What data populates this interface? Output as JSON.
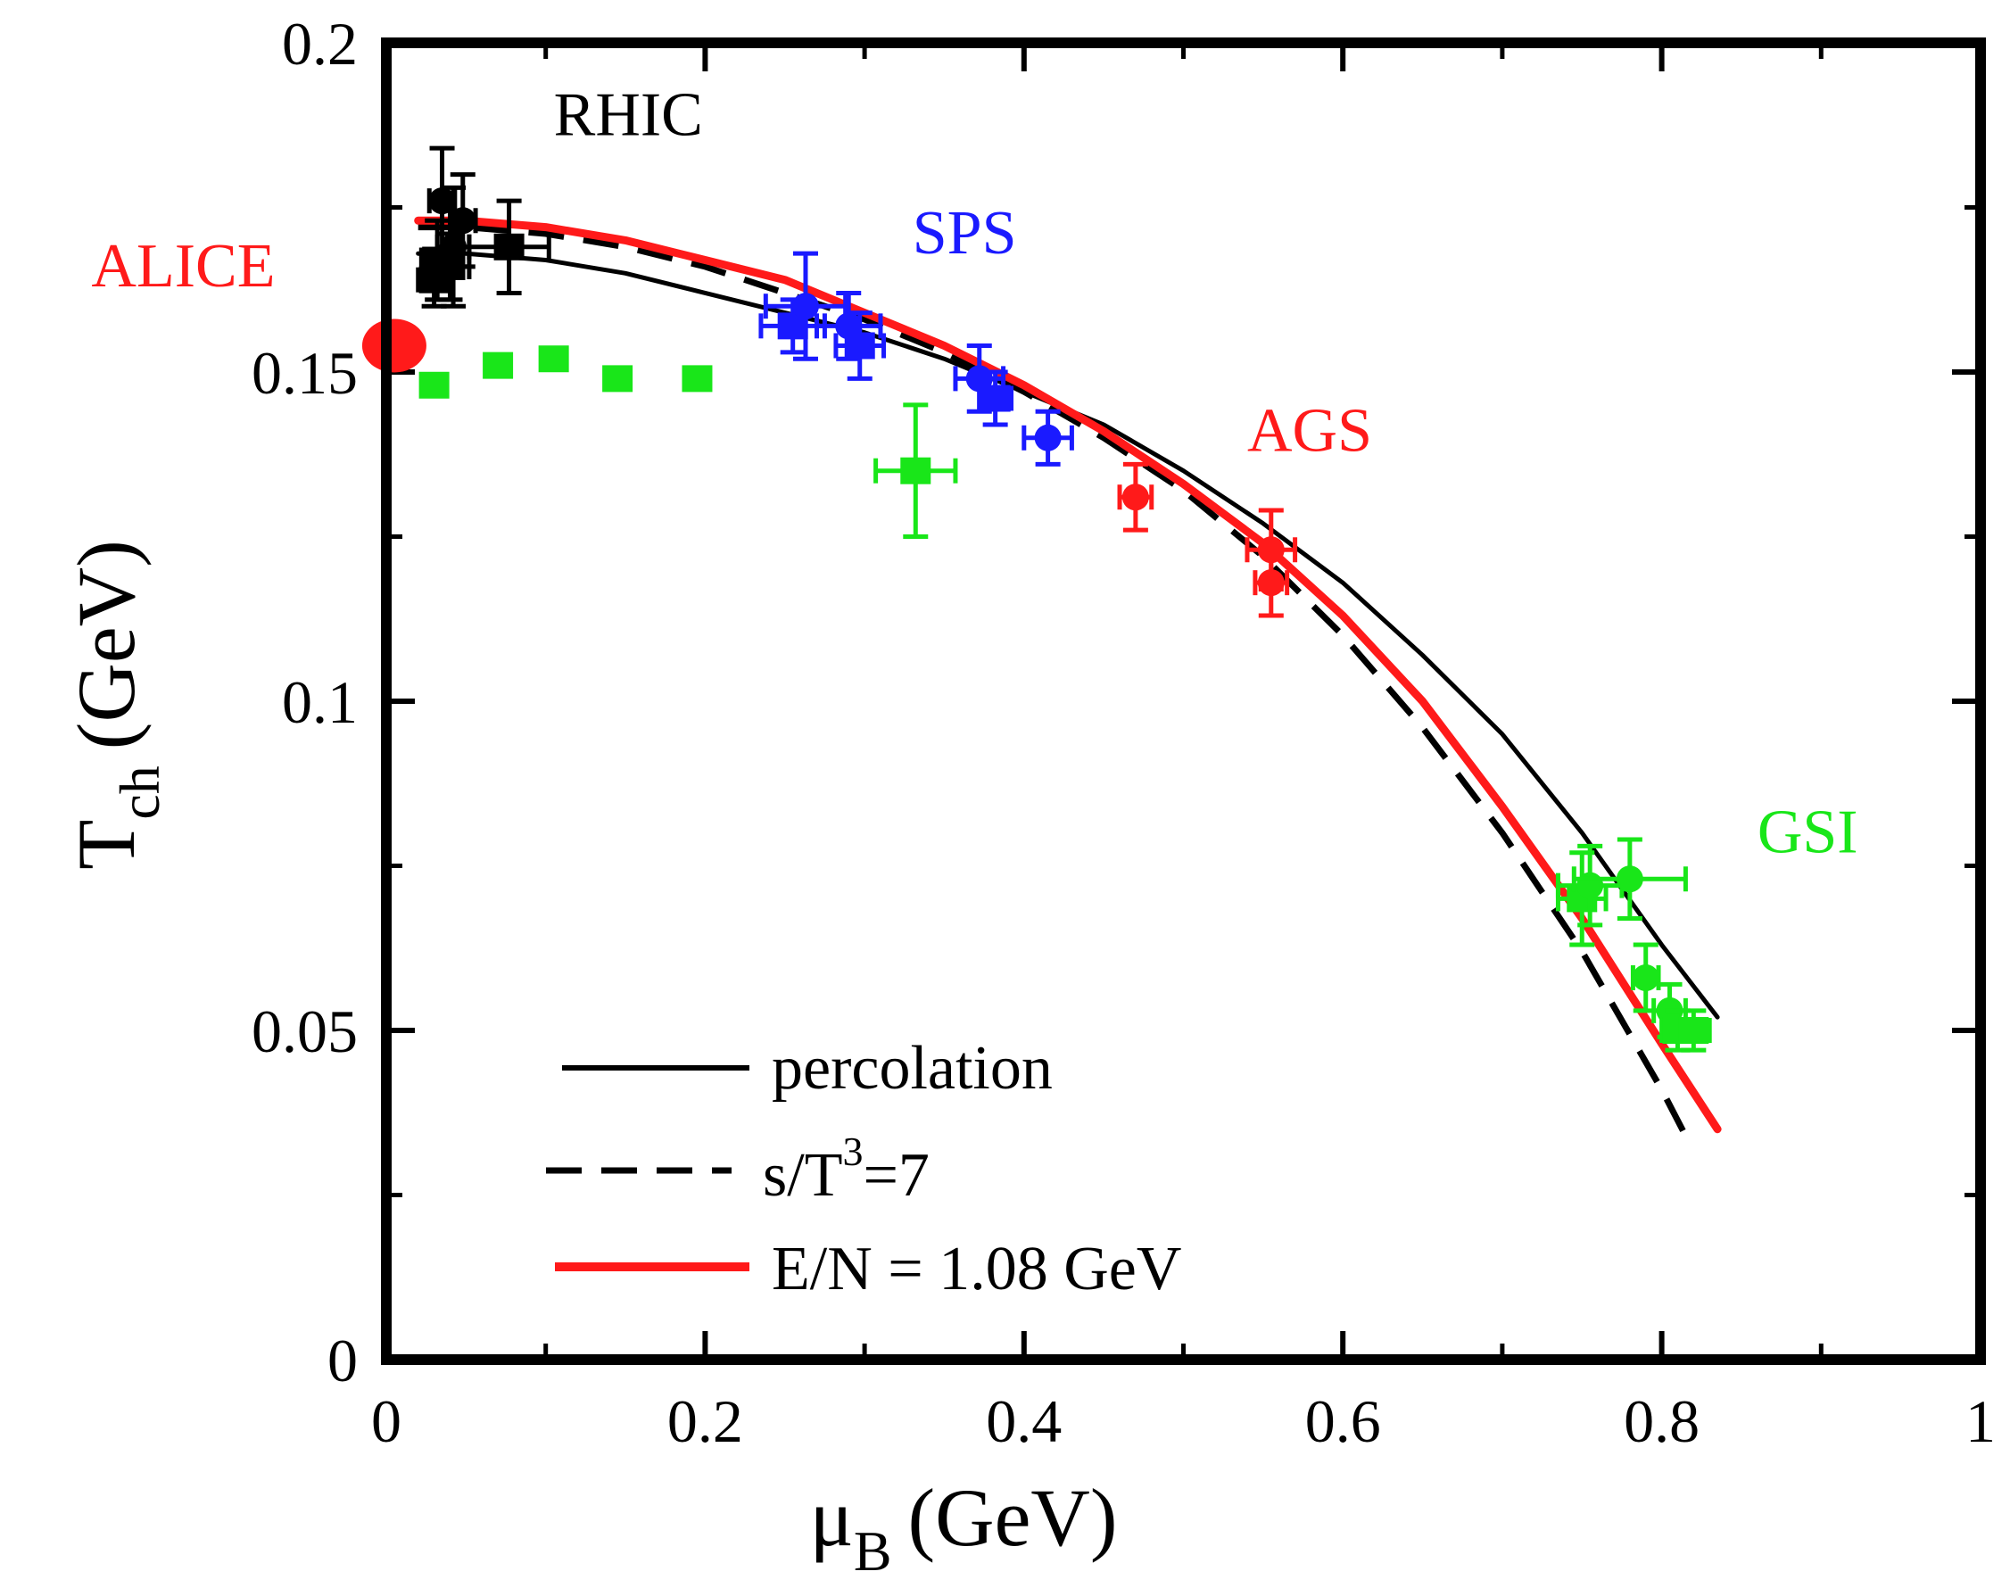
{
  "colors": {
    "black": "#000000",
    "red": "#ff1a1a",
    "blue": "#1a1aff",
    "green": "#19e619"
  },
  "chart_data": {
    "type": "scatter",
    "title": "",
    "xlabel": {
      "symbol": "μ",
      "sub": "B",
      "unit": "(GeV)"
    },
    "ylabel": {
      "symbol": "T",
      "sub": "ch",
      "unit": "(GeV)"
    },
    "xlim": [
      0,
      1
    ],
    "ylim": [
      0,
      0.2
    ],
    "xticks": [
      {
        "value": 0,
        "label": "0"
      },
      {
        "value": 0.2,
        "label": "0.2"
      },
      {
        "value": 0.4,
        "label": "0.4"
      },
      {
        "value": 0.6,
        "label": "0.6"
      },
      {
        "value": 0.8,
        "label": "0.8"
      },
      {
        "value": 1,
        "label": "1"
      }
    ],
    "yticks": [
      {
        "value": 0,
        "label": "0"
      },
      {
        "value": 0.05,
        "label": "0.05"
      },
      {
        "value": 0.1,
        "label": "0.1"
      },
      {
        "value": 0.15,
        "label": "0.15"
      },
      {
        "value": 0.2,
        "label": "0.2"
      }
    ],
    "x_minor_ticks": [
      0.1,
      0.3,
      0.5,
      0.7,
      0.9
    ],
    "y_minor_ticks": [
      0.025,
      0.075,
      0.125,
      0.175
    ],
    "curves": [
      {
        "name": "percolation",
        "color": "#000000",
        "style": "solid",
        "x": [
          0.02,
          0.05,
          0.1,
          0.15,
          0.2,
          0.25,
          0.3,
          0.35,
          0.4,
          0.45,
          0.5,
          0.55,
          0.6,
          0.65,
          0.7,
          0.75,
          0.8,
          0.835
        ],
        "y": [
          0.168,
          0.168,
          0.167,
          0.165,
          0.162,
          0.159,
          0.156,
          0.152,
          0.147,
          0.142,
          0.135,
          0.127,
          0.118,
          0.107,
          0.095,
          0.08,
          0.063,
          0.052
        ]
      },
      {
        "name": "s/T³=7",
        "color": "#000000",
        "style": "dashed",
        "x": [
          0.02,
          0.05,
          0.1,
          0.15,
          0.2,
          0.25,
          0.3,
          0.35,
          0.4,
          0.45,
          0.5,
          0.55,
          0.6,
          0.65,
          0.7,
          0.75,
          0.8,
          0.815
        ],
        "y": [
          0.172,
          0.172,
          0.171,
          0.169,
          0.166,
          0.162,
          0.158,
          0.153,
          0.147,
          0.14,
          0.132,
          0.122,
          0.11,
          0.096,
          0.08,
          0.062,
          0.041,
          0.034
        ]
      },
      {
        "name": "E/N = 1.08 GeV",
        "color": "#ff1a1a",
        "style": "solid",
        "x": [
          0.02,
          0.05,
          0.1,
          0.15,
          0.2,
          0.25,
          0.3,
          0.35,
          0.4,
          0.45,
          0.5,
          0.55,
          0.6,
          0.65,
          0.7,
          0.75,
          0.8,
          0.835
        ],
        "y": [
          0.173,
          0.173,
          0.172,
          0.17,
          0.167,
          0.164,
          0.159,
          0.154,
          0.148,
          0.141,
          0.133,
          0.124,
          0.113,
          0.1,
          0.084,
          0.067,
          0.048,
          0.035
        ]
      }
    ],
    "series": [
      {
        "name": "RHIC",
        "color": "#000000",
        "points": [
          {
            "x": 0.03,
            "y": 0.164,
            "ex": 0.01,
            "ey": 0.004,
            "marker": "square"
          },
          {
            "x": 0.032,
            "y": 0.167,
            "ex": 0.01,
            "ey": 0.006,
            "marker": "square"
          },
          {
            "x": 0.035,
            "y": 0.176,
            "ex": 0.008,
            "ey": 0.008,
            "marker": "circle"
          },
          {
            "x": 0.04,
            "y": 0.166,
            "ex": 0.012,
            "ey": 0.005,
            "marker": "square"
          },
          {
            "x": 0.042,
            "y": 0.169,
            "ex": 0.01,
            "ey": 0.009,
            "marker": "circle"
          },
          {
            "x": 0.048,
            "y": 0.173,
            "ex": 0.008,
            "ey": 0.007,
            "marker": "circle"
          },
          {
            "x": 0.077,
            "y": 0.169,
            "ex": 0.025,
            "ey": 0.007,
            "marker": "square"
          }
        ]
      },
      {
        "name": "ALICE",
        "color": "#ff1a1a",
        "points": [
          {
            "x": 0.005,
            "y": 0.154,
            "ex": 0,
            "ey": 0,
            "marker": "bigcircle"
          }
        ]
      },
      {
        "name": "SPS",
        "color": "#1a1aff",
        "points": [
          {
            "x": 0.255,
            "y": 0.157,
            "ex": 0.02,
            "ey": 0.004,
            "marker": "square"
          },
          {
            "x": 0.263,
            "y": 0.16,
            "ex": 0.025,
            "ey": 0.008,
            "marker": "circle"
          },
          {
            "x": 0.29,
            "y": 0.157,
            "ex": 0.02,
            "ey": 0.005,
            "marker": "circle"
          },
          {
            "x": 0.297,
            "y": 0.154,
            "ex": 0.015,
            "ey": 0.005,
            "marker": "square"
          },
          {
            "x": 0.372,
            "y": 0.149,
            "ex": 0.015,
            "ey": 0.005,
            "marker": "circle"
          },
          {
            "x": 0.382,
            "y": 0.146,
            "ex": 0.01,
            "ey": 0.004,
            "marker": "square"
          },
          {
            "x": 0.415,
            "y": 0.14,
            "ex": 0.015,
            "ey": 0.004,
            "marker": "circle"
          }
        ]
      },
      {
        "name": "AGS",
        "color": "#ff1a1a",
        "points": [
          {
            "x": 0.47,
            "y": 0.131,
            "ex": 0.01,
            "ey": 0.005,
            "marker": "circle"
          },
          {
            "x": 0.555,
            "y": 0.123,
            "ex": 0.015,
            "ey": 0.006,
            "marker": "circle"
          },
          {
            "x": 0.555,
            "y": 0.118,
            "ex": 0.01,
            "ey": 0.005,
            "marker": "circle"
          }
        ]
      },
      {
        "name": "GSI",
        "color": "#19e619",
        "points": [
          {
            "x": 0.03,
            "y": 0.148,
            "ex": 0,
            "ey": 0,
            "marker": "square"
          },
          {
            "x": 0.07,
            "y": 0.151,
            "ex": 0,
            "ey": 0,
            "marker": "square"
          },
          {
            "x": 0.105,
            "y": 0.152,
            "ex": 0,
            "ey": 0,
            "marker": "square"
          },
          {
            "x": 0.145,
            "y": 0.149,
            "ex": 0,
            "ey": 0,
            "marker": "square"
          },
          {
            "x": 0.195,
            "y": 0.149,
            "ex": 0,
            "ey": 0,
            "marker": "square"
          },
          {
            "x": 0.332,
            "y": 0.135,
            "ex": 0.025,
            "ey": 0.01,
            "marker": "square"
          },
          {
            "x": 0.75,
            "y": 0.07,
            "ex": 0.015,
            "ey": 0.007,
            "marker": "square"
          },
          {
            "x": 0.755,
            "y": 0.072,
            "ex": 0.02,
            "ey": 0.006,
            "marker": "circle"
          },
          {
            "x": 0.78,
            "y": 0.073,
            "ex": 0.035,
            "ey": 0.006,
            "marker": "circle"
          },
          {
            "x": 0.79,
            "y": 0.058,
            "ex": 0.008,
            "ey": 0.005,
            "marker": "circle"
          },
          {
            "x": 0.805,
            "y": 0.053,
            "ex": 0.01,
            "ey": 0.004,
            "marker": "circle"
          },
          {
            "x": 0.81,
            "y": 0.05,
            "ex": 0.01,
            "ey": 0.003,
            "marker": "square"
          },
          {
            "x": 0.82,
            "y": 0.05,
            "ex": 0.01,
            "ey": 0.003,
            "marker": "square"
          }
        ]
      }
    ],
    "annotations": [
      {
        "text": "RHIC",
        "x": 0.105,
        "y": 0.186,
        "color": "#000000"
      },
      {
        "text": "ALICE",
        "x": -0.185,
        "y": 0.163,
        "color": "#ff1a1a"
      },
      {
        "text": "SPS",
        "x": 0.33,
        "y": 0.168,
        "color": "#1a1aff"
      },
      {
        "text": "AGS",
        "x": 0.54,
        "y": 0.138,
        "color": "#ff1a1a"
      },
      {
        "text": "GSI",
        "x": 0.86,
        "y": 0.077,
        "color": "#19e619"
      }
    ],
    "legend": {
      "position": "bottom-left",
      "entries": [
        {
          "label": "percolation",
          "color": "#000000",
          "style": "solid"
        },
        {
          "label_main": "s/T",
          "label_sup": "3",
          "label_tail": "=7",
          "color": "#000000",
          "style": "dashed"
        },
        {
          "label": "E/N = 1.08 GeV",
          "color": "#ff1a1a",
          "style": "solid"
        }
      ]
    }
  }
}
